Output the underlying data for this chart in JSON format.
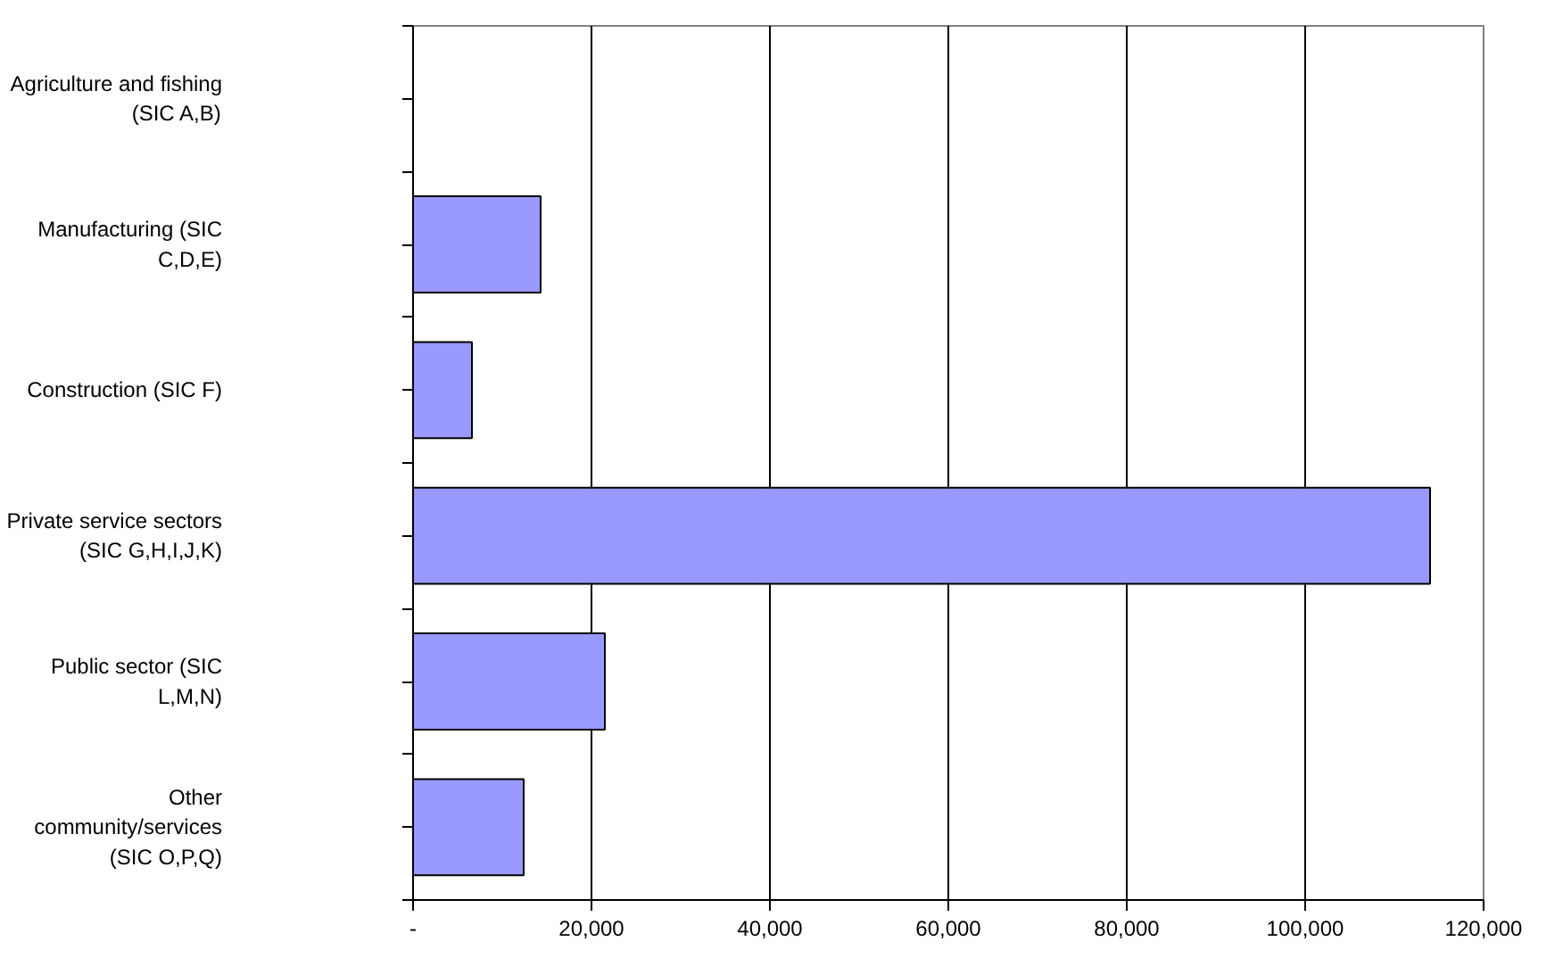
{
  "chart_data": {
    "type": "bar",
    "orientation": "horizontal",
    "categories": [
      "Agriculture and fishing\n(SIC A,B)",
      "Manufacturing (SIC\nC,D,E)",
      "Construction (SIC F)",
      "Private service sectors\n(SIC G,H,I,J,K)",
      "Public sector (SIC\nL,M,N)",
      "Other\ncommunity/services\n(SIC O,P,Q)"
    ],
    "values": [
      null,
      14300,
      6600,
      114000,
      21500,
      12400
    ],
    "color": "#9999ff",
    "xlim": [
      0,
      120000
    ],
    "xticks": [
      {
        "value": 0,
        "label": "-"
      },
      {
        "value": 20000,
        "label": "20,000"
      },
      {
        "value": 40000,
        "label": "40,000"
      },
      {
        "value": 60000,
        "label": "60,000"
      },
      {
        "value": 80000,
        "label": "80,000"
      },
      {
        "value": 100000,
        "label": "100,000"
      },
      {
        "value": 120000,
        "label": "120,000"
      }
    ],
    "grid": "x"
  }
}
